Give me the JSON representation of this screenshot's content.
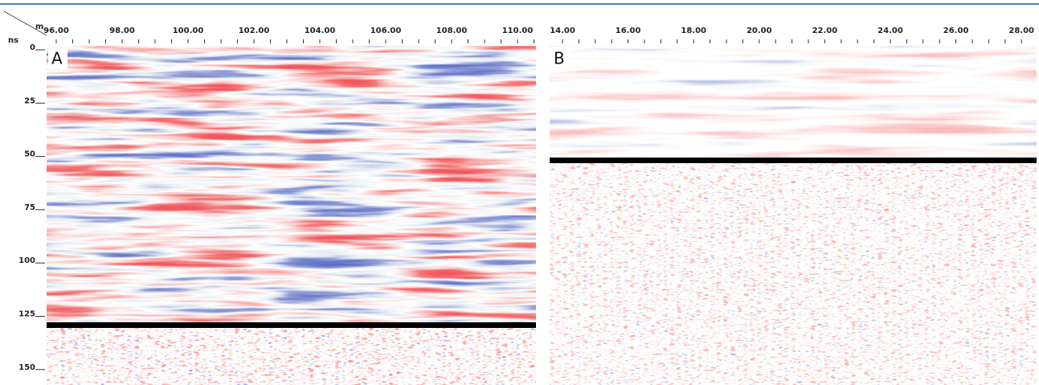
{
  "units": {
    "x": "m",
    "y": "ns"
  },
  "panels": [
    {
      "label": "A",
      "x_ticks": [
        "96.00",
        "98.00",
        "100.00",
        "102.00",
        "104.00",
        "106.00",
        "108.00",
        "110.00"
      ]
    },
    {
      "label": "B",
      "x_ticks": [
        "14.00",
        "16.00",
        "18.00",
        "20.00",
        "22.00",
        "24.00",
        "26.00",
        "28.00"
      ]
    }
  ],
  "y_ticks": [
    "0",
    "25",
    "50",
    "75",
    "100",
    "125",
    "150"
  ]
}
